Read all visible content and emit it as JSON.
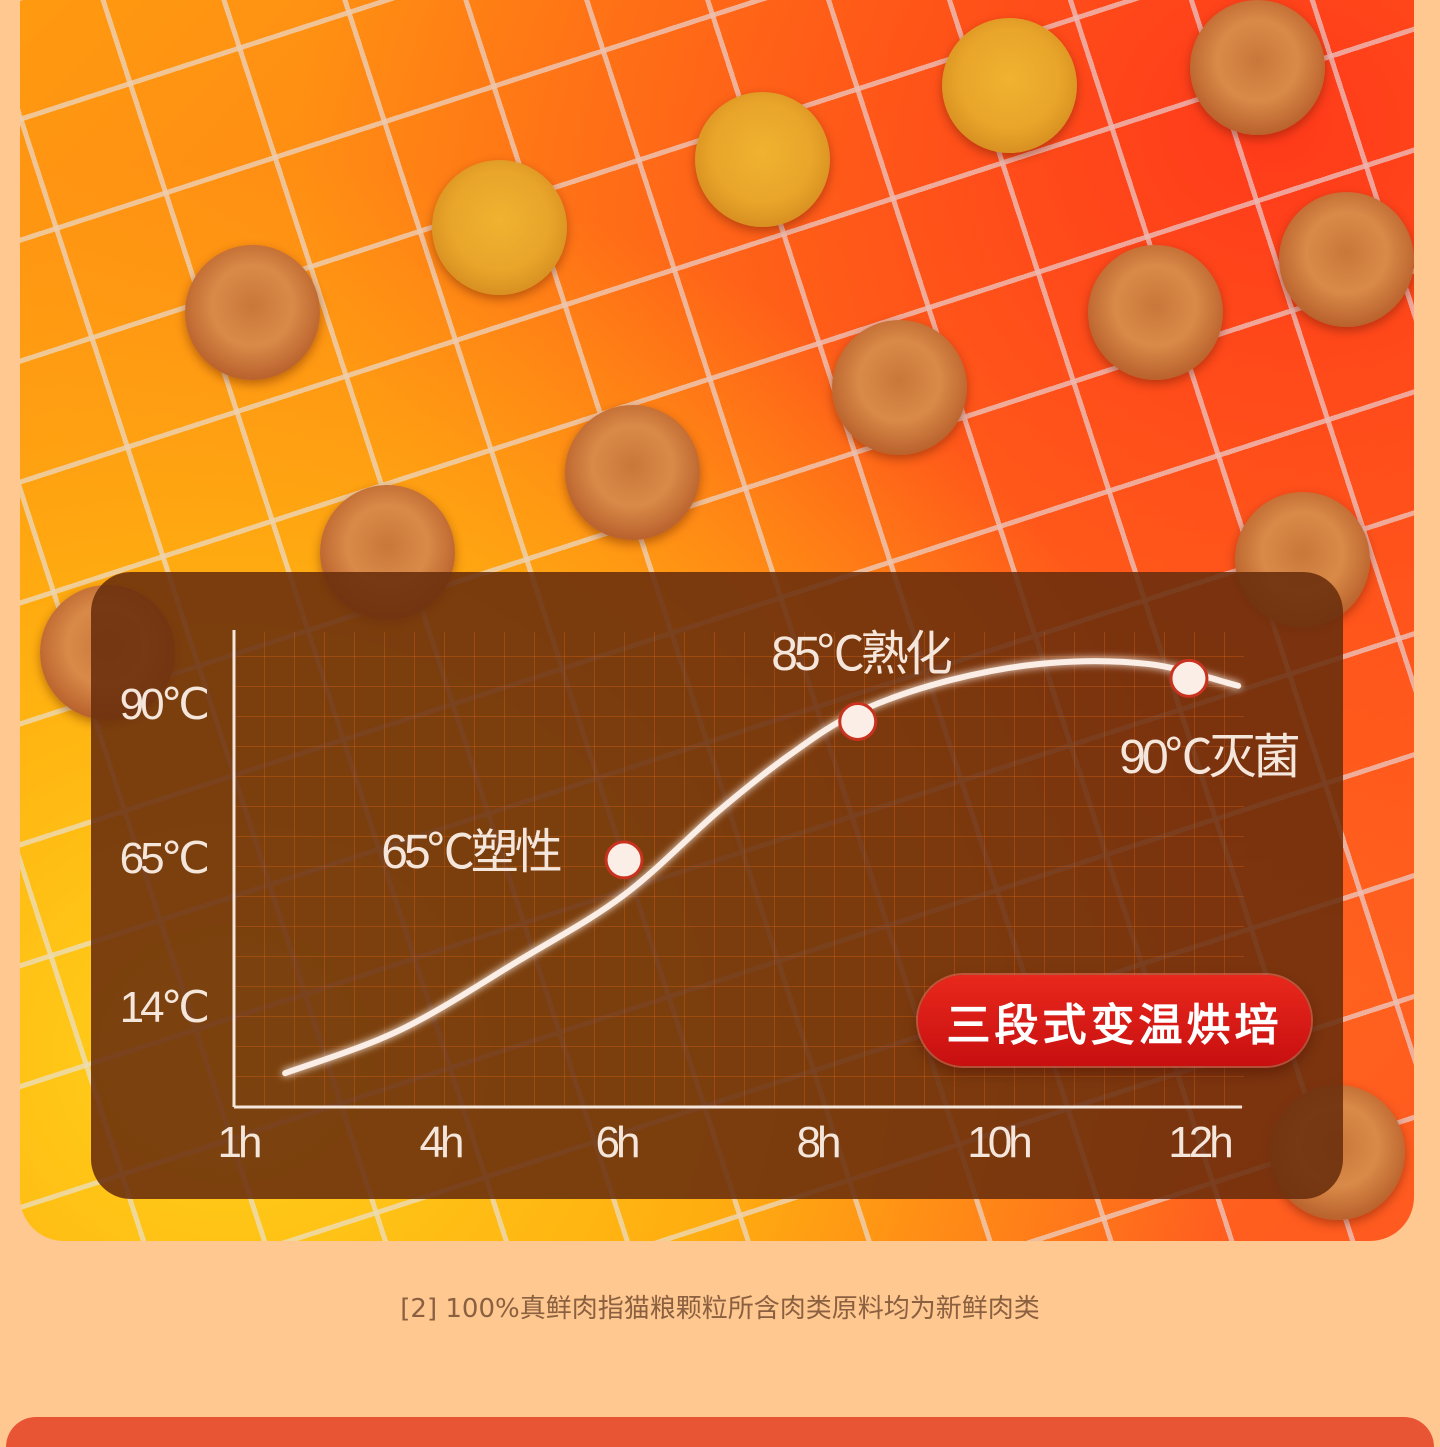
{
  "chart_data": {
    "type": "line",
    "x_ticks": [
      1,
      4,
      6,
      8,
      10,
      12
    ],
    "x_tick_labels": [
      "1h",
      "4h",
      "6h",
      "8h",
      "10h",
      "12h"
    ],
    "y_ticks": [
      14,
      65,
      90
    ],
    "y_tick_labels": [
      "14℃",
      "65℃",
      "90℃"
    ],
    "xlabel": "",
    "ylabel": "",
    "grid": true,
    "series": [
      {
        "x": [
          1.7,
          3.41,
          4.91,
          6.08,
          7.03,
          7.73,
          8.45,
          9.47,
          10.52,
          11.51,
          12.39
        ],
        "y": [
          -9,
          5.8,
          29.8,
          52,
          72.6,
          81.6,
          88.5,
          93.7,
          96.5,
          96.3,
          92.8
        ]
      }
    ],
    "markers": [
      {
        "x": 6.08,
        "y": 64,
        "label": "65℃塑性"
      },
      {
        "x": 8.45,
        "y": 87,
        "label": "85℃熟化"
      },
      {
        "x": 11.9,
        "y": 94,
        "label": "90℃灭菌"
      }
    ],
    "colors": {
      "line": "#fbeee6",
      "panel": "#692d0c",
      "badge": "#d0141a"
    }
  },
  "badge": {
    "label": "三段式变温烘培"
  },
  "footnote": "[2] 100%真鲜肉指猫粮颗粒所含肉类原料均为新鲜肉类"
}
